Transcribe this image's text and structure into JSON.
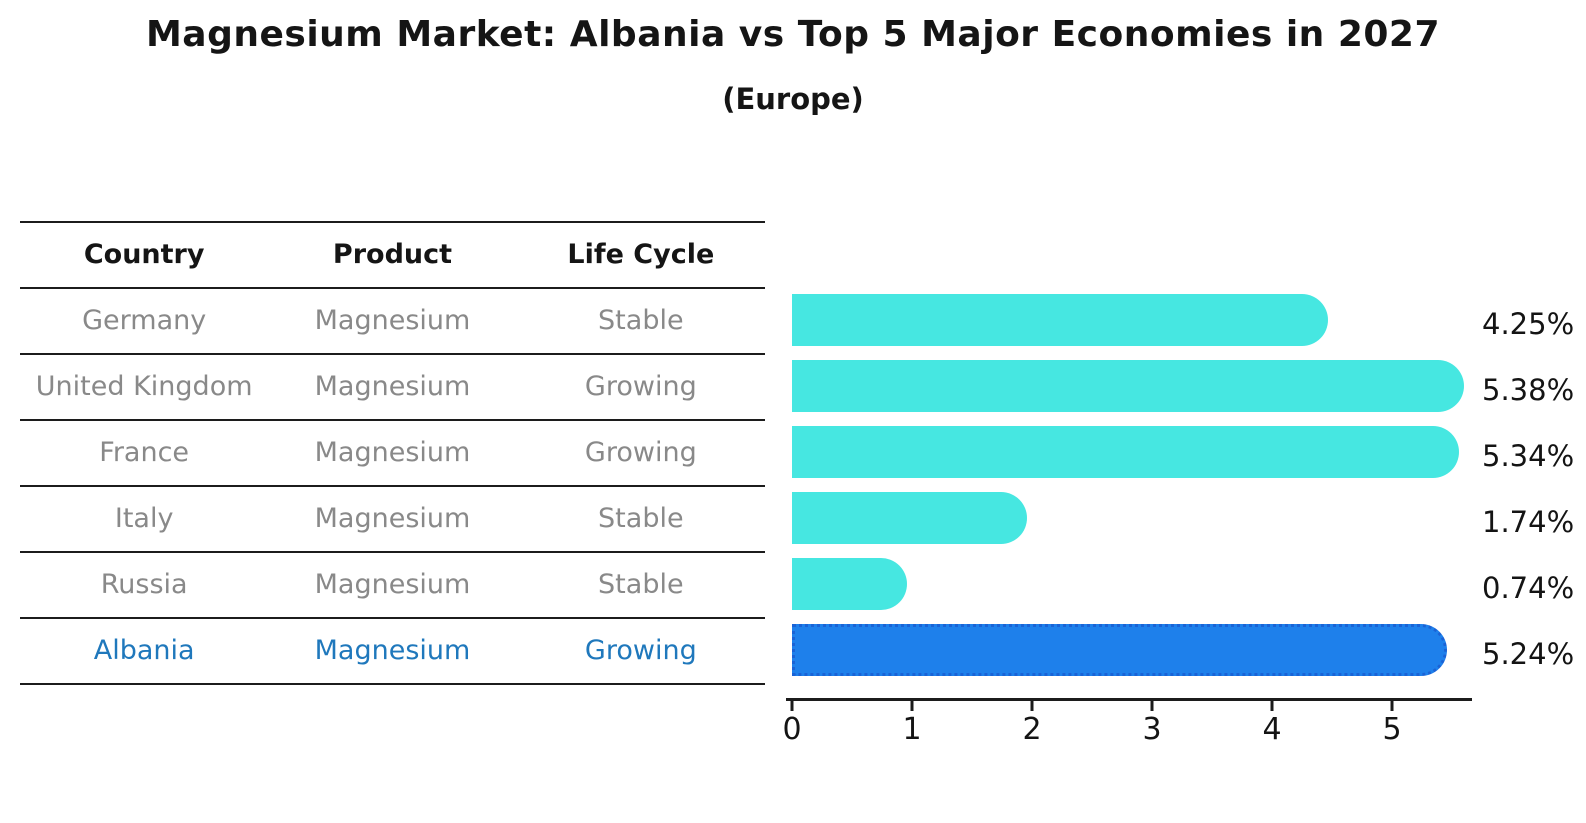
{
  "title": "Magnesium Market: Albania vs Top 5 Major Economies in 2027",
  "subtitle": "(Europe)",
  "table": {
    "headers": [
      "Country",
      "Product",
      "Life Cycle"
    ],
    "rows": [
      {
        "country": "Germany",
        "product": "Magnesium",
        "life_cycle": "Stable"
      },
      {
        "country": "United Kingdom",
        "product": "Magnesium",
        "life_cycle": "Growing"
      },
      {
        "country": "France",
        "product": "Magnesium",
        "life_cycle": "Growing"
      },
      {
        "country": "Italy",
        "product": "Magnesium",
        "life_cycle": "Stable"
      },
      {
        "country": "Russia",
        "product": "Magnesium",
        "life_cycle": "Stable"
      },
      {
        "country": "Albania",
        "product": "Magnesium",
        "life_cycle": "Growing"
      }
    ]
  },
  "chart_data": {
    "type": "bar",
    "orientation": "horizontal",
    "categories": [
      "Germany",
      "United Kingdom",
      "France",
      "Italy",
      "Russia",
      "Albania"
    ],
    "values": [
      4.25,
      5.38,
      5.34,
      1.74,
      0.74,
      5.24
    ],
    "value_labels": [
      "4.25%",
      "5.38%",
      "5.34%",
      "1.74%",
      "0.74%",
      "5.24%"
    ],
    "x_ticks": [
      "0",
      "1",
      "2",
      "3",
      "4",
      "5"
    ],
    "xlim": [
      0,
      5.67
    ],
    "grid": false,
    "legend": "none",
    "highlight_index": 5,
    "bar_color": "#46e7e1",
    "highlight_color": "#1e80eb"
  },
  "colors": {
    "row_text": "#898989",
    "highlight_text": "#1f78bc",
    "line": "#1c1c1c"
  }
}
